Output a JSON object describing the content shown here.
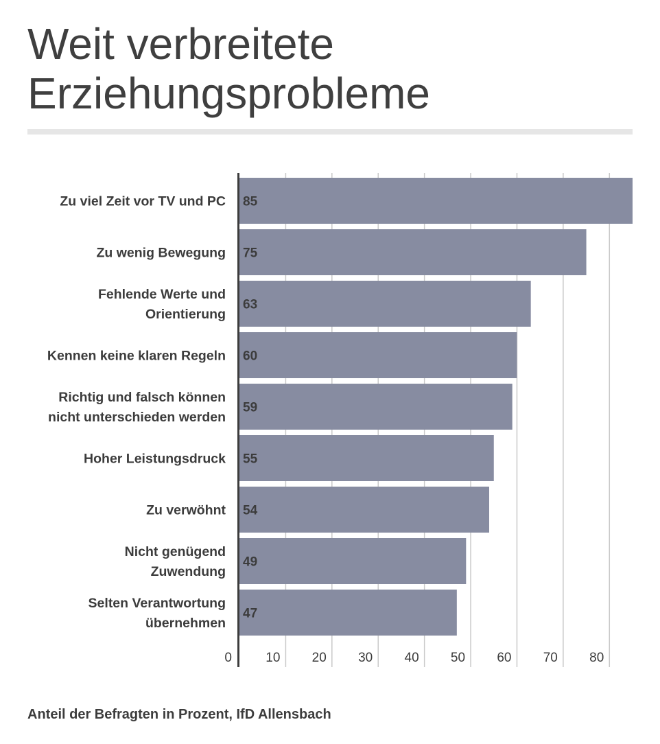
{
  "title": "Weit verbreitete Erziehungsprobleme",
  "source": "Anteil der Befragten in Prozent, IfD Allensbach",
  "chart_data": {
    "type": "bar",
    "orientation": "horizontal",
    "title": "Weit verbreitete Erziehungsprobleme",
    "categories": [
      [
        "Zu viel Zeit vor TV und PC"
      ],
      [
        "Zu wenig Bewegung"
      ],
      [
        "Fehlende Werte und",
        "Orientierung"
      ],
      [
        "Kennen keine klaren Regeln"
      ],
      [
        "Richtig und falsch können",
        "nicht unterschieden werden"
      ],
      [
        "Hoher Leistungsdruck"
      ],
      [
        "Zu verwöhnt"
      ],
      [
        "Nicht genügend",
        "Zuwendung"
      ],
      [
        "Selten Verantwortung",
        "übernehmen"
      ]
    ],
    "values": [
      85,
      75,
      63,
      60,
      59,
      55,
      54,
      49,
      47
    ],
    "xlim": [
      0,
      85
    ],
    "xticks": [
      0,
      10,
      20,
      30,
      40,
      50,
      60,
      70,
      80
    ],
    "grid": true,
    "colors": {
      "bar": "#878ca1",
      "grid": "#c9c9c9",
      "axis": "#3c3c3c"
    }
  }
}
